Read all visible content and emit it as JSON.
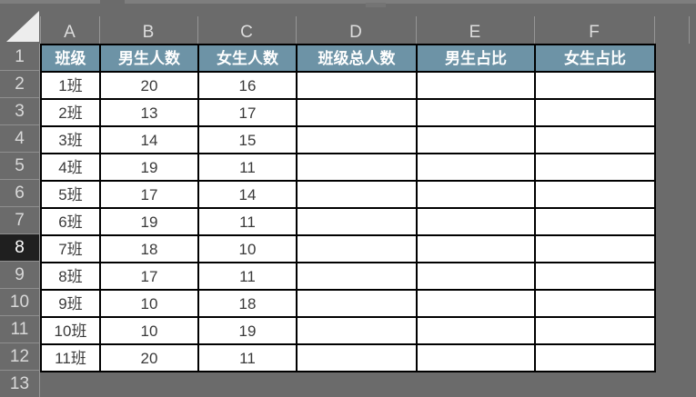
{
  "app": {
    "title": "Excel worksheet - class roster",
    "colors": {
      "chrome_bg": "#6B6B6B",
      "chrome_sliver": "#7E7E7E",
      "chrome_text": "#DDDDDD",
      "table_header_fill": "#6D93A6",
      "table_header_text": "#FFFFFF",
      "cell_bg": "#FFFFFF",
      "cell_text": "#3A3A3A",
      "cell_border": "#000000",
      "active_row_header_bg": "#1F1F1F",
      "active_row_accent_green": "#1E7C4A",
      "select_all_triangle": "#EDEDED"
    }
  },
  "spreadsheet": {
    "column_headers": [
      "A",
      "B",
      "C",
      "D",
      "E",
      "F"
    ],
    "row_headers": [
      "1",
      "2",
      "3",
      "4",
      "5",
      "6",
      "7",
      "8",
      "9",
      "10",
      "11",
      "12",
      "13"
    ],
    "active_row_header": "8",
    "header_row": [
      "班级",
      "男生人数",
      "女生人数",
      "班级总人数",
      "男生占比",
      "女生占比"
    ],
    "data_rows": [
      [
        "1班",
        "20",
        "16",
        "",
        "",
        ""
      ],
      [
        "2班",
        "13",
        "17",
        "",
        "",
        ""
      ],
      [
        "3班",
        "14",
        "15",
        "",
        "",
        ""
      ],
      [
        "4班",
        "19",
        "11",
        "",
        "",
        ""
      ],
      [
        "5班",
        "17",
        "14",
        "",
        "",
        ""
      ],
      [
        "6班",
        "19",
        "11",
        "",
        "",
        ""
      ],
      [
        "7班",
        "18",
        "10",
        "",
        "",
        ""
      ],
      [
        "8班",
        "17",
        "11",
        "",
        "",
        ""
      ],
      [
        "9班",
        "10",
        "18",
        "",
        "",
        ""
      ],
      [
        "10班",
        "10",
        "19",
        "",
        "",
        ""
      ],
      [
        "11班",
        "20",
        "11",
        "",
        "",
        ""
      ]
    ]
  }
}
